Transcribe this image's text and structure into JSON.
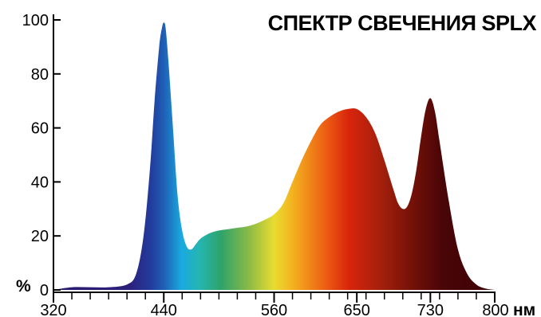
{
  "chart_data": {
    "type": "area",
    "title": "СПЕКТР СВЕЧЕНИЯ SPLX",
    "ylabel": "%",
    "xlabel": "нм",
    "xlim": [
      320,
      800
    ],
    "ylim": [
      0,
      100
    ],
    "x_ticks": [
      320,
      440,
      560,
      650,
      730,
      800
    ],
    "y_ticks": [
      0,
      20,
      40,
      60,
      80,
      100
    ],
    "grid": false,
    "x": [
      320,
      340,
      360,
      380,
      400,
      410,
      418,
      425,
      430,
      435,
      438,
      440,
      442,
      445,
      450,
      455,
      460,
      465,
      470,
      475,
      480,
      490,
      500,
      510,
      520,
      530,
      540,
      550,
      560,
      570,
      580,
      590,
      600,
      610,
      620,
      630,
      640,
      650,
      660,
      670,
      680,
      690,
      695,
      700,
      705,
      710,
      715,
      720,
      725,
      730,
      735,
      740,
      750,
      760,
      770,
      780,
      790,
      800
    ],
    "values": [
      0,
      1,
      1,
      1,
      2,
      6,
      20,
      45,
      70,
      90,
      97,
      99,
      97,
      85,
      60,
      35,
      22,
      16,
      15,
      17,
      19,
      21,
      22,
      22.5,
      23,
      23.5,
      24.5,
      26,
      28,
      32,
      40,
      48,
      55,
      61,
      64,
      66,
      67,
      67,
      64,
      58,
      48,
      37,
      32,
      30,
      31,
      36,
      45,
      57,
      67,
      71,
      66,
      55,
      33,
      15,
      6,
      2,
      0.5,
      0
    ]
  }
}
